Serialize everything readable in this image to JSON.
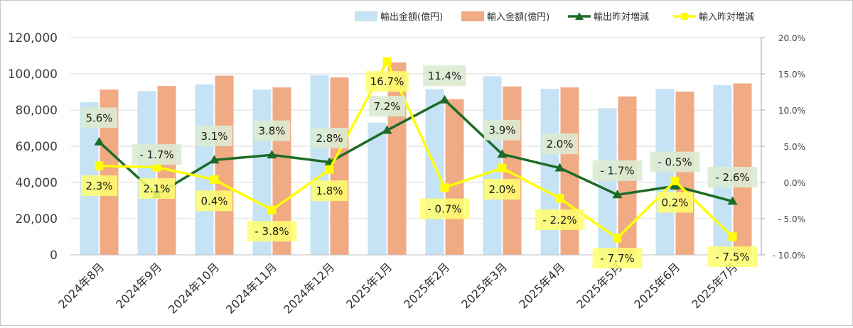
{
  "chart_data": {
    "type": "bar+line",
    "categories": [
      "2024年8月",
      "2024年9月",
      "2024年10月",
      "2024年11月",
      "2024年12月",
      "2025年1月",
      "2025年2月",
      "2025年3月",
      "2025年4月",
      "2025年5月",
      "2025年6月",
      "2025年7月"
    ],
    "series": [
      {
        "name": "輸出金額(億円)",
        "type": "bar",
        "axis": "left",
        "color": "#c5e3f4",
        "values": [
          84300,
          90500,
          94200,
          91300,
          99200,
          73000,
          91400,
          98700,
          91700,
          81000,
          91700,
          93700
        ]
      },
      {
        "name": "輸入金額(億円)",
        "type": "bar",
        "axis": "left",
        "color": "#f0aa84",
        "values": [
          91300,
          93300,
          99000,
          92500,
          98000,
          106300,
          86000,
          93000,
          92500,
          87500,
          90200,
          94700
        ]
      },
      {
        "name": "輸出昨対増減",
        "type": "line",
        "axis": "right",
        "color": "#1e6b27",
        "marker": "triangle",
        "values": [
          5.6,
          -1.7,
          3.1,
          3.8,
          2.8,
          7.2,
          11.4,
          3.9,
          2.0,
          -1.7,
          -0.5,
          -2.6
        ],
        "labels": [
          "5.6%",
          "- 1.7%",
          "3.1%",
          "3.8%",
          "2.8%",
          "7.2%",
          "11.4%",
          "3.9%",
          "2.0%",
          "- 1.7%",
          "- 0.5%",
          "- 2.6%"
        ]
      },
      {
        "name": "輸入昨対増減",
        "type": "line",
        "axis": "right",
        "color": "#ffff00",
        "marker": "square",
        "values": [
          2.3,
          2.1,
          0.4,
          -3.8,
          1.8,
          16.7,
          -0.7,
          2.0,
          -2.2,
          -7.7,
          0.2,
          -7.5
        ],
        "labels": [
          "2.3%",
          "2.1%",
          "0.4%",
          "- 3.8%",
          "1.8%",
          "16.7%",
          "- 0.7%",
          "2.0%",
          "- 2.2%",
          "- 7.7%",
          "0.2%",
          "- 7.5%"
        ]
      }
    ],
    "y_left": {
      "min": 0,
      "max": 120000,
      "ticks": [
        "0",
        "20,000",
        "40,000",
        "60,000",
        "80,000",
        "100,000",
        "120,000"
      ]
    },
    "y_right": {
      "min": -10,
      "max": 20,
      "ticks": [
        "- 10.0%",
        "- 5.0%",
        "0.0%",
        "5.0%",
        "10.0%",
        "15.0%",
        "20.0%"
      ]
    },
    "grid": true,
    "legend": "top-right",
    "title": "",
    "xlabel": "",
    "ylabel": ""
  }
}
